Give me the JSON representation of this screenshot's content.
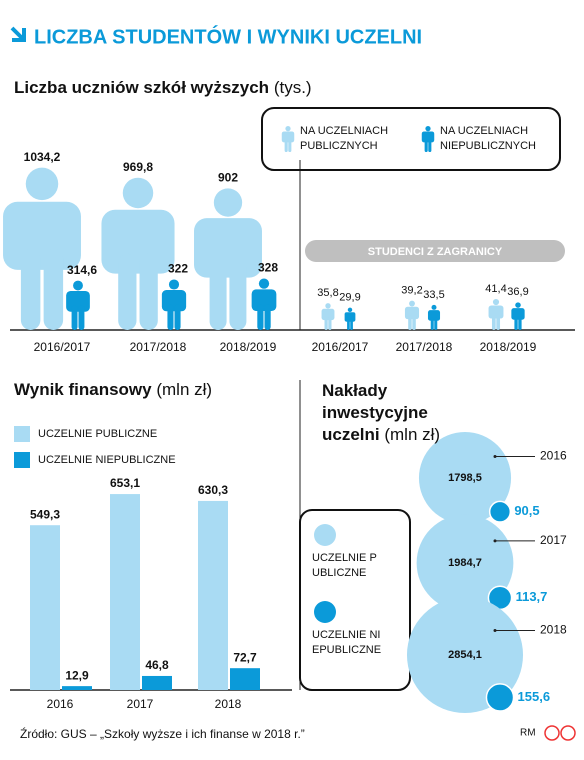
{
  "header": {
    "title": "LICZBA STUDENTÓW I WYNIKI UCZELNI"
  },
  "chart_data": [
    {
      "type": "pictogram",
      "title": "Liczba uczniów szkół wyższych",
      "unit": "(tys.)",
      "categories": [
        "2016/2017",
        "2017/2018",
        "2018/2019"
      ],
      "series": [
        {
          "name": "NA UCZELNIACH PUBLICZNYCH",
          "color": "#a9dbf3",
          "values": [
            1034.2,
            969.8,
            902
          ],
          "value_labels": [
            "1034,2",
            "969,8",
            "902"
          ]
        },
        {
          "name": "NA UCZELNIACH NIEPUBLICZNYCH",
          "color": "#0b9ad9",
          "values": [
            314.6,
            322,
            328
          ],
          "value_labels": [
            "314,6",
            "322",
            "328"
          ]
        }
      ]
    },
    {
      "type": "pictogram",
      "title": "STUDENCI Z ZAGRANICY",
      "categories": [
        "2016/2017",
        "2017/2018",
        "2018/2019"
      ],
      "series": [
        {
          "color": "#a9dbf3",
          "values": [
            35.8,
            39.2,
            41.4
          ],
          "value_labels": [
            "35,8",
            "39,2",
            "41,4"
          ]
        },
        {
          "color": "#0b9ad9",
          "values": [
            29.9,
            33.5,
            36.9
          ],
          "value_labels": [
            "29,9",
            "33,5",
            "36,9"
          ]
        }
      ]
    },
    {
      "type": "bar",
      "title": "Wynik finansowy",
      "unit": "(mln zł)",
      "categories": [
        "2016",
        "2017",
        "2018"
      ],
      "series": [
        {
          "name": "UCZELNIE PUBLICZNE",
          "color": "#a9dbf3",
          "values": [
            549.3,
            653.1,
            630.3
          ],
          "value_labels": [
            "549,3",
            "653,1",
            "630,3"
          ]
        },
        {
          "name": "UCZELNIE NIEPUBLICZNE",
          "color": "#0b9ad9",
          "values": [
            12.9,
            46.8,
            72.7
          ],
          "value_labels": [
            "12,9",
            "46,8",
            "72,7"
          ]
        }
      ]
    },
    {
      "type": "bubble",
      "title": "Nakłady inwestycyjne uczelni",
      "unit": "(mln zł)",
      "categories": [
        "2016",
        "2017",
        "2018"
      ],
      "series": [
        {
          "name": "UCZELNIE PUBLICZNE",
          "color": "#a9dbf3",
          "values": [
            1798.5,
            1984.7,
            2854.1
          ],
          "value_labels": [
            "1798,5",
            "1984,7",
            "2854,1"
          ]
        },
        {
          "name": "UCZELNIE NIEPUBLICZNE",
          "color": "#0b9ad9",
          "values": [
            90.5,
            113.7,
            155.6
          ],
          "value_labels": [
            "90,5",
            "113,7",
            "155,6"
          ]
        }
      ]
    }
  ],
  "source": "Źródło: GUS – „Szkoły wyższe i ich finanse w 2018 r.”",
  "credit": "RM"
}
